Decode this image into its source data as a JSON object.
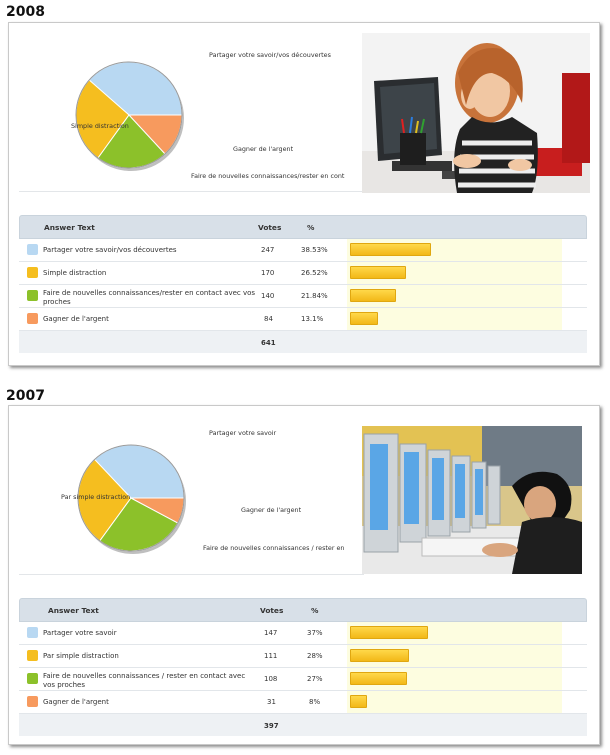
{
  "sections": [
    {
      "year": "2008",
      "headers": {
        "answer": "Answer Text",
        "votes": "Votes",
        "pct": "%"
      },
      "rows": [
        {
          "label": "Partager votre savoir/vos découvertes",
          "votes": "247",
          "pct": "38.53%",
          "color": "#b8d8f2"
        },
        {
          "label": "Simple distraction",
          "votes": "170",
          "pct": "26.52%",
          "color": "#f5be1f"
        },
        {
          "label": "Faire de nouvelles connaissances/rester en contact avec vos proches",
          "votes": "140",
          "pct": "21.84%",
          "color": "#8cc12a"
        },
        {
          "label": "Gagner de l'argent",
          "votes": "84",
          "pct": "13.1%",
          "color": "#f79a5e"
        }
      ],
      "total": "641",
      "pie_labels": [
        "Partager votre savoir/vos découvertes",
        "Simple distraction",
        "Faire de nouvelles connaissances/rester en cont",
        "Gagner de l'argent"
      ],
      "photo": "woman-at-computer"
    },
    {
      "year": "2007",
      "headers": {
        "answer": "Answer Text",
        "votes": "Votes",
        "pct": "%"
      },
      "rows": [
        {
          "label": "Partager votre savoir",
          "votes": "147",
          "pct": "37%",
          "color": "#b8d8f2"
        },
        {
          "label": "Par simple distraction",
          "votes": "111",
          "pct": "28%",
          "color": "#f5be1f"
        },
        {
          "label": "Faire de nouvelles connaissances / rester en contact avec vos proches",
          "votes": "108",
          "pct": "27%",
          "color": "#8cc12a"
        },
        {
          "label": "Gagner de l'argent",
          "votes": "31",
          "pct": "8%",
          "color": "#f79a5e"
        }
      ],
      "total": "397",
      "pie_labels": [
        "Partager votre savoir",
        "Par simple distraction",
        "Faire de nouvelles connaissances / rester en",
        "Gagner de l'argent"
      ],
      "photo": "internet-cafe"
    }
  ],
  "chart_data": [
    {
      "type": "pie",
      "title": "",
      "categories": [
        "Partager votre savoir/vos découvertes",
        "Simple distraction",
        "Faire de nouvelles connaissances/rester en contact avec vos proches",
        "Gagner de l'argent"
      ],
      "values": [
        247,
        170,
        140,
        84
      ],
      "percentages": [
        38.53,
        26.52,
        21.84,
        13.1
      ],
      "colors": [
        "#b8d8f2",
        "#f5be1f",
        "#8cc12a",
        "#f79a5e"
      ]
    },
    {
      "type": "pie",
      "title": "",
      "categories": [
        "Partager votre savoir",
        "Par simple distraction",
        "Faire de nouvelles connaissances / rester en contact avec vos proches",
        "Gagner de l'argent"
      ],
      "values": [
        147,
        111,
        108,
        31
      ],
      "percentages": [
        37,
        28,
        27,
        8
      ],
      "colors": [
        "#b8d8f2",
        "#f5be1f",
        "#8cc12a",
        "#f79a5e"
      ]
    }
  ]
}
